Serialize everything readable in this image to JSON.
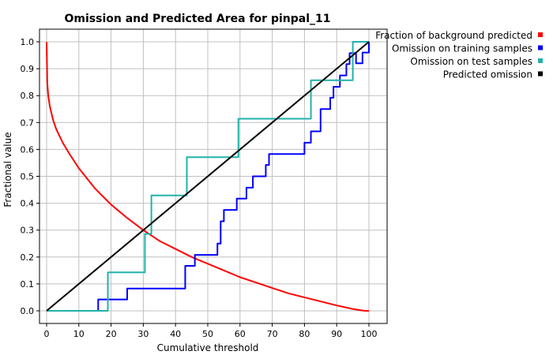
{
  "chart_data": {
    "type": "line",
    "title": "Omission and Predicted Area for pinpal_11",
    "xlabel": "Cumulative threshold",
    "ylabel": "Fractional value",
    "xlim": [
      0,
      100
    ],
    "ylim": [
      0,
      1
    ],
    "xticks": [
      0,
      10,
      20,
      30,
      40,
      50,
      60,
      70,
      80,
      90,
      100
    ],
    "yticks": [
      0.0,
      0.1,
      0.2,
      0.3,
      0.4,
      0.5,
      0.6,
      0.7,
      0.8,
      0.9,
      1.0
    ],
    "xtick_labels": [
      "0",
      "10",
      "20",
      "30",
      "40",
      "50",
      "60",
      "70",
      "80",
      "90",
      "100"
    ],
    "ytick_labels": [
      "0.0",
      "0.1",
      "0.2",
      "0.3",
      "0.4",
      "0.5",
      "0.6",
      "0.7",
      "0.8",
      "0.9",
      "1.0"
    ],
    "grid": true,
    "legend_position": "top-right outside",
    "series": [
      {
        "name": "Fraction of background predicted",
        "color": "#ff0000",
        "style": "smooth",
        "x": [
          0,
          0.2,
          0.5,
          1,
          2,
          3,
          5,
          7,
          10,
          15,
          20,
          25,
          30,
          35,
          40,
          45,
          50,
          55,
          60,
          65,
          70,
          75,
          80,
          85,
          90,
          93,
          95,
          97,
          98,
          99,
          100
        ],
        "y": [
          1.0,
          0.85,
          0.8,
          0.76,
          0.71,
          0.675,
          0.625,
          0.585,
          0.53,
          0.455,
          0.395,
          0.345,
          0.3,
          0.26,
          0.23,
          0.2,
          0.175,
          0.15,
          0.125,
          0.105,
          0.085,
          0.065,
          0.05,
          0.035,
          0.02,
          0.012,
          0.007,
          0.003,
          0.001,
          0.0,
          0.0
        ]
      },
      {
        "name": "Omission on training samples",
        "color": "#0000ff",
        "style": "step",
        "x": [
          0,
          16,
          25,
          43,
          46,
          53,
          54,
          55,
          59,
          62,
          64,
          68,
          69,
          80,
          82,
          85,
          88,
          89,
          91,
          93,
          94,
          96,
          98,
          100
        ],
        "y": [
          0,
          0.042,
          0.083,
          0.167,
          0.208,
          0.25,
          0.333,
          0.375,
          0.417,
          0.458,
          0.5,
          0.542,
          0.583,
          0.625,
          0.667,
          0.75,
          0.792,
          0.833,
          0.875,
          0.917,
          0.958,
          0.92,
          0.96,
          1.0
        ]
      },
      {
        "name": "Omission on test samples",
        "color": "#20b2aa",
        "style": "step",
        "x": [
          0,
          19,
          30.5,
          32.5,
          43.5,
          59.5,
          82,
          95,
          100
        ],
        "y": [
          0,
          0.143,
          0.286,
          0.429,
          0.571,
          0.714,
          0.857,
          1.0,
          1.0
        ]
      },
      {
        "name": "Predicted omission",
        "color": "#000000",
        "style": "line",
        "x": [
          0,
          100
        ],
        "y": [
          0,
          1
        ]
      }
    ]
  }
}
